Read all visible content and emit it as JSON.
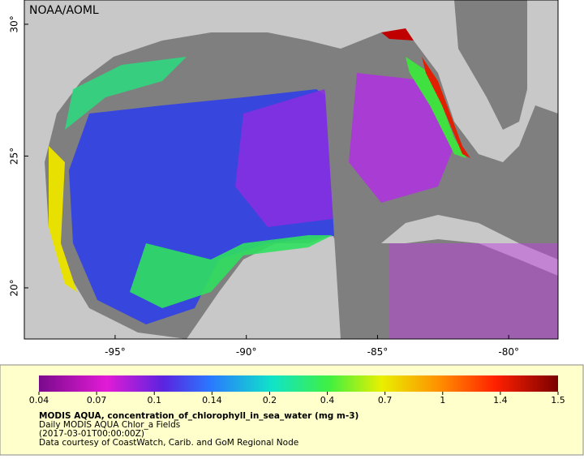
{
  "map": {
    "credit": "NOAA/AOML",
    "lonlim": [
      -98.46,
      -78.12
    ],
    "latlim": [
      18.06,
      30.92
    ],
    "lat_ticks": [
      {
        "value": 30,
        "label": "30°"
      },
      {
        "value": 25,
        "label": "25°"
      },
      {
        "value": 20,
        "label": "20°"
      }
    ],
    "lon_ticks": [
      {
        "value": -95,
        "label": "-95°"
      },
      {
        "value": -90,
        "label": "-90°"
      },
      {
        "value": -85,
        "label": "-85°"
      },
      {
        "value": -80,
        "label": "-80°"
      }
    ]
  },
  "colorbar": {
    "ticks": [
      0.04,
      0.07,
      0.1,
      0.14,
      0.2,
      0.4,
      0.7,
      1,
      1.4,
      1.5
    ]
  },
  "caption": {
    "title": "MODIS AQUA, concentration_of_chlorophyll_in_sea_water (mg m-3)",
    "lines": [
      "Daily MODIS AQUA Chlor_a Fields",
      "(2017-03-01T00:00:00Z)",
      "Data courtesy of CoastWatch, Carib. and GoM Regional Node"
    ]
  }
}
